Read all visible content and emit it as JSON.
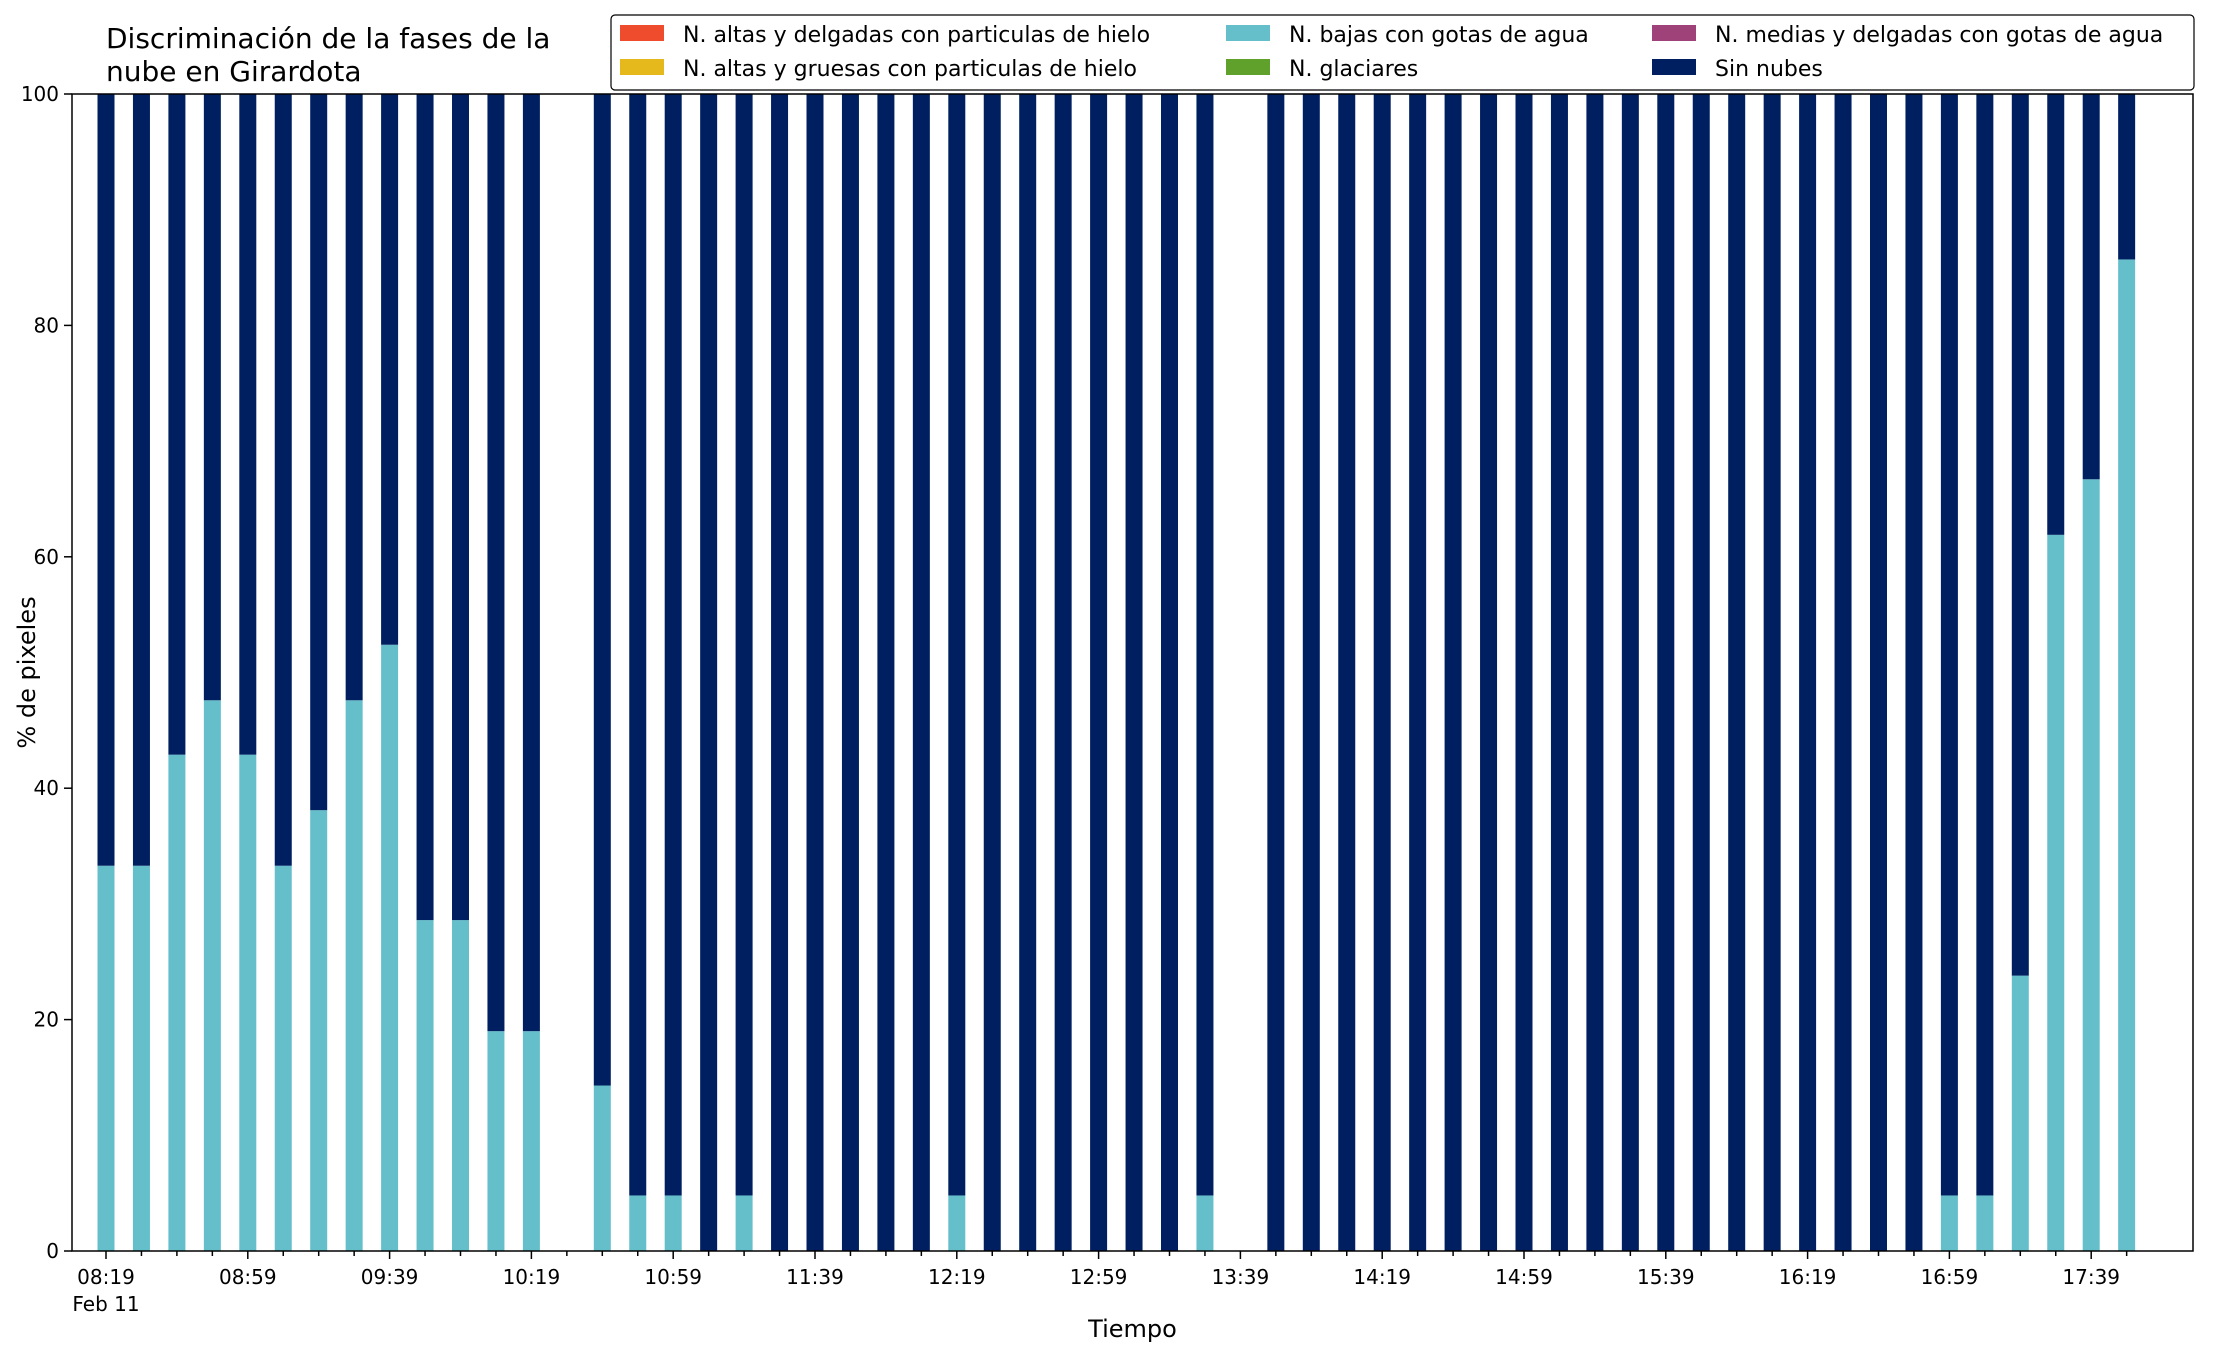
{
  "chart_data": {
    "type": "bar",
    "stacked": true,
    "title_lines": [
      "Discriminación de la fases de la",
      "nube en Girardota"
    ],
    "xlabel": "Tiempo",
    "ylabel": "% de pixeles",
    "ylim": [
      0,
      100
    ],
    "yticks": [
      0,
      20,
      40,
      60,
      80,
      100
    ],
    "x_tick_labels": [
      "08:19",
      "08:59",
      "09:39",
      "10:19",
      "10:59",
      "11:39",
      "12:19",
      "12:59",
      "13:39",
      "14:19",
      "14:59",
      "15:39",
      "16:19",
      "16:59",
      "17:39"
    ],
    "x_date_label": "Feb 11",
    "categories": [
      "08:19",
      "08:29",
      "08:39",
      "08:49",
      "08:59",
      "09:09",
      "09:19",
      "09:29",
      "09:39",
      "09:49",
      "09:59",
      "10:09",
      "10:19",
      "10:29",
      "10:39",
      "10:49",
      "10:59",
      "11:09",
      "11:19",
      "11:29",
      "11:39",
      "11:49",
      "11:59",
      "12:09",
      "12:19",
      "12:29",
      "12:39",
      "12:49",
      "12:59",
      "13:09",
      "13:19",
      "13:29",
      "13:39",
      "13:49",
      "13:59",
      "14:09",
      "14:19",
      "14:29",
      "14:39",
      "14:49",
      "14:59",
      "15:09",
      "15:19",
      "15:29",
      "15:39",
      "15:49",
      "15:59",
      "16:09",
      "16:19",
      "16:29",
      "16:39",
      "16:49",
      "16:59",
      "17:09",
      "17:19",
      "17:29",
      "17:39",
      "17:49"
    ],
    "series": [
      {
        "name": "N. altas y delgadas con particulas de hielo",
        "color": "#ee4c2c",
        "values": [
          0,
          0,
          0,
          0,
          0,
          0,
          0,
          0,
          0,
          0,
          0,
          0,
          0,
          null,
          0,
          0,
          0,
          0,
          0,
          0,
          0,
          0,
          0,
          0,
          0,
          0,
          0,
          0,
          0,
          0,
          0,
          0,
          null,
          0,
          0,
          0,
          0,
          0,
          0,
          0,
          0,
          0,
          0,
          0,
          0,
          0,
          0,
          0,
          0,
          0,
          0,
          0,
          0,
          0,
          0,
          0,
          0,
          0
        ]
      },
      {
        "name": "N. altas y gruesas con particulas de hielo",
        "color": "#e5b81b",
        "values": [
          0,
          0,
          0,
          0,
          0,
          0,
          0,
          0,
          0,
          0,
          0,
          0,
          0,
          null,
          0,
          0,
          0,
          0,
          0,
          0,
          0,
          0,
          0,
          0,
          0,
          0,
          0,
          0,
          0,
          0,
          0,
          0,
          null,
          0,
          0,
          0,
          0,
          0,
          0,
          0,
          0,
          0,
          0,
          0,
          0,
          0,
          0,
          0,
          0,
          0,
          0,
          0,
          0,
          0,
          0,
          0,
          0,
          0
        ]
      },
      {
        "name": "N. bajas con gotas de agua",
        "color": "#65bfcb",
        "values": [
          33.3,
          33.3,
          42.9,
          47.6,
          42.9,
          33.3,
          38.1,
          47.6,
          52.4,
          28.6,
          28.6,
          19.0,
          19.0,
          null,
          14.3,
          4.8,
          4.8,
          0,
          4.8,
          0,
          0,
          0,
          0,
          0,
          4.8,
          0,
          0,
          0,
          0,
          0,
          0,
          4.8,
          null,
          0,
          0,
          0,
          0,
          0,
          0,
          0,
          0,
          0,
          0,
          0,
          0,
          0,
          0,
          0,
          0,
          0,
          0,
          0,
          4.8,
          4.8,
          23.8,
          61.9,
          66.7,
          85.7
        ]
      },
      {
        "name": "N. glaciares",
        "color": "#5fa12b",
        "values": [
          0,
          0,
          0,
          0,
          0,
          0,
          0,
          0,
          0,
          0,
          0,
          0,
          0,
          null,
          0,
          0,
          0,
          0,
          0,
          0,
          0,
          0,
          0,
          0,
          0,
          0,
          0,
          0,
          0,
          0,
          0,
          0,
          null,
          0,
          0,
          0,
          0,
          0,
          0,
          0,
          0,
          0,
          0,
          0,
          0,
          0,
          0,
          0,
          0,
          0,
          0,
          0,
          0,
          0,
          0,
          0,
          0,
          0
        ]
      },
      {
        "name": "N. medias y delgadas con gotas de agua",
        "color": "#a0427a",
        "values": [
          0,
          0,
          0,
          0,
          0,
          0,
          0,
          0,
          0,
          0,
          0,
          0,
          0,
          null,
          0,
          0,
          0,
          0,
          0,
          0,
          0,
          0,
          0,
          0,
          0,
          0,
          0,
          0,
          0,
          0,
          0,
          0,
          null,
          0,
          0,
          0,
          0,
          0,
          0,
          0,
          0,
          0,
          0,
          0,
          0,
          0,
          0,
          0,
          0,
          0,
          0,
          0,
          0,
          0,
          0,
          0,
          0,
          0
        ]
      },
      {
        "name": "Sin nubes",
        "color": "#001f60",
        "values": [
          66.7,
          66.7,
          57.1,
          52.4,
          57.1,
          66.7,
          61.9,
          52.4,
          47.6,
          71.4,
          71.4,
          81.0,
          81.0,
          null,
          85.7,
          95.2,
          95.2,
          100,
          95.2,
          100,
          100,
          100,
          100,
          100,
          95.2,
          100,
          100,
          100,
          100,
          100,
          100,
          95.2,
          null,
          100,
          100,
          100,
          100,
          100,
          100,
          100,
          100,
          100,
          100,
          100,
          100,
          100,
          100,
          100,
          100,
          100,
          100,
          100,
          95.2,
          95.2,
          76.2,
          38.1,
          33.3,
          14.3
        ]
      }
    ],
    "legend_position": "top-right",
    "legend_columns": 3,
    "legend_order": [
      0,
      1,
      2,
      3,
      4,
      5
    ],
    "grid": false
  }
}
